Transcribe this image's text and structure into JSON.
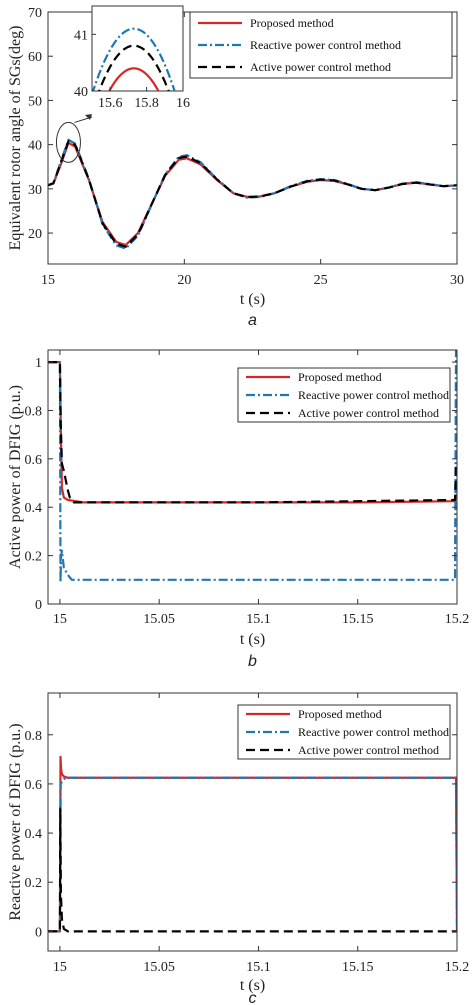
{
  "colors": {
    "proposed": "#d62728",
    "reactive": "#1f77b4",
    "active": "#000000"
  },
  "legend": [
    "Proposed method",
    "Reactive power control method",
    "Active power control method"
  ],
  "chart_data": [
    {
      "type": "line",
      "caption": "a",
      "xlabel": "t (s)",
      "ylabel": "Equivalent rotor angle of SGs(deg)",
      "xlim": [
        15,
        30
      ],
      "ylim": [
        13,
        70
      ],
      "xticks": [
        15,
        20,
        25,
        30
      ],
      "yticks": [
        20,
        30,
        40,
        50,
        60,
        70
      ],
      "legend_position": "top-right",
      "series": [
        {
          "name": "Proposed method",
          "x": [
            15,
            15.2,
            15.5,
            15.75,
            16,
            16.5,
            17,
            17.5,
            17.85,
            18.3,
            18.8,
            19.3,
            19.8,
            20.1,
            20.6,
            21.2,
            21.8,
            22.3,
            22.8,
            23.3,
            23.9,
            24.5,
            25,
            25.5,
            26,
            26.5,
            27,
            27.5,
            28,
            28.5,
            29,
            29.5,
            30
          ],
          "y": [
            30.8,
            31.2,
            36,
            40.4,
            39.5,
            32,
            22.5,
            18,
            17.3,
            20,
            26.5,
            33,
            36.6,
            36.9,
            35.5,
            32,
            29,
            28.2,
            28.3,
            29,
            30.5,
            31.6,
            32,
            31.8,
            31,
            30,
            29.7,
            30.3,
            31.1,
            31.4,
            31,
            30.6,
            30.8
          ]
        },
        {
          "name": "Reactive power control method",
          "x": [
            15,
            15.2,
            15.5,
            15.75,
            16,
            16.5,
            17,
            17.5,
            17.85,
            18.3,
            18.8,
            19.3,
            19.8,
            20.1,
            20.6,
            21.2,
            21.8,
            22.3,
            22.8,
            23.3,
            23.9,
            24.5,
            25,
            25.5,
            26,
            26.5,
            27,
            27.5,
            28,
            28.5,
            29,
            29.5,
            30
          ],
          "y": [
            30.8,
            31.3,
            36.7,
            41.1,
            40.2,
            32.2,
            22,
            17.2,
            16.5,
            19.4,
            26.4,
            33.3,
            37.3,
            37.6,
            36,
            32.2,
            29,
            28,
            28.2,
            29,
            30.6,
            31.8,
            32.2,
            32,
            31.1,
            30,
            29.7,
            30.3,
            31.2,
            31.5,
            31.1,
            30.6,
            30.8
          ]
        },
        {
          "name": "Active power control method",
          "x": [
            15,
            15.2,
            15.5,
            15.75,
            16,
            16.5,
            17,
            17.5,
            17.85,
            18.3,
            18.8,
            19.3,
            19.8,
            20.1,
            20.6,
            21.2,
            21.8,
            22.3,
            22.8,
            23.3,
            23.9,
            24.5,
            25,
            25.5,
            26,
            26.5,
            27,
            27.5,
            28,
            28.5,
            29,
            29.5,
            30
          ],
          "y": [
            30.8,
            31.3,
            36.4,
            40.8,
            39.9,
            32.1,
            22.2,
            17.6,
            16.9,
            19.7,
            26.5,
            33.2,
            37,
            37.3,
            35.8,
            32.1,
            29,
            28.1,
            28.3,
            29,
            30.5,
            31.7,
            32.1,
            31.9,
            31,
            30,
            29.7,
            30.3,
            31.1,
            31.4,
            31,
            30.6,
            30.8
          ]
        }
      ],
      "inset": {
        "xlim": [
          15.5,
          16
        ],
        "ylim": [
          40,
          41.5
        ],
        "xticks": [
          15.6,
          15.8,
          16
        ],
        "yticks": [
          40,
          41
        ],
        "peaks": {
          "Proposed method": 40.4,
          "Reactive power control method": 41.1,
          "Active power control method": 40.8
        },
        "peak_t": 15.73
      },
      "zoom_marker": {
        "t": 15.75,
        "y": 40.5
      }
    },
    {
      "type": "line",
      "caption": "b",
      "xlabel": "t (s)",
      "ylabel": "Active power of DFIG (p.u.)",
      "xlim": [
        14.994,
        15.2
      ],
      "ylim": [
        0,
        1.05
      ],
      "xticks": [
        15,
        15.05,
        15.1,
        15.15,
        15.2
      ],
      "ytick_labels": [
        "0",
        "0.2",
        "0.4",
        "0.6",
        "0.8",
        "1"
      ],
      "legend_position": "top-right",
      "series": [
        {
          "name": "Proposed method",
          "x": [
            14.994,
            15,
            15.0005,
            15.001,
            15.002,
            15.004,
            15.008,
            15.012,
            15.05,
            15.1,
            15.15,
            15.199,
            15.1995,
            15.2
          ],
          "y": [
            1,
            1,
            0.7,
            0.48,
            0.44,
            0.43,
            0.425,
            0.42,
            0.42,
            0.42,
            0.42,
            0.425,
            0.45,
            0.45
          ]
        },
        {
          "name": "Reactive power control method",
          "x": [
            14.994,
            15,
            15.0003,
            15.0006,
            15.001,
            15.002,
            15.004,
            15.006,
            15.05,
            15.1,
            15.15,
            15.199,
            15.1995,
            15.2
          ],
          "y": [
            1,
            1,
            0.09,
            0.2,
            0.22,
            0.15,
            0.12,
            0.1,
            0.1,
            0.1,
            0.1,
            0.1,
            1.05,
            1.05
          ]
        },
        {
          "name": "Active power control method",
          "x": [
            14.994,
            15,
            15.0004,
            15.001,
            15.002,
            15.004,
            15.005,
            15.007,
            15.05,
            15.1,
            15.15,
            15.199,
            15.1995,
            15.2
          ],
          "y": [
            1,
            1,
            0.75,
            0.58,
            0.55,
            0.47,
            0.44,
            0.42,
            0.42,
            0.42,
            0.425,
            0.43,
            0.57,
            0.57
          ]
        }
      ]
    },
    {
      "type": "line",
      "caption": "c",
      "xlabel": "t (s)",
      "ylabel": "Reactive power of DFIG (p.u.)",
      "xlim": [
        14.994,
        15.2
      ],
      "ylim": [
        -0.08,
        0.97
      ],
      "xticks": [
        15,
        15.05,
        15.1,
        15.15,
        15.2
      ],
      "ytick_labels": [
        "0",
        "0.2",
        "0.4",
        "0.6",
        "0.8"
      ],
      "legend_position": "top-right",
      "series": [
        {
          "name": "Proposed method",
          "x": [
            14.994,
            15,
            15.0003,
            15.0006,
            15.001,
            15.002,
            15.004,
            15.05,
            15.1,
            15.15,
            15.1995,
            15.2
          ],
          "y": [
            0,
            0,
            0.71,
            0.66,
            0.64,
            0.63,
            0.625,
            0.625,
            0.625,
            0.625,
            0.625,
            0
          ]
        },
        {
          "name": "Reactive power control method",
          "x": [
            14.994,
            15,
            15.0004,
            15.001,
            15.002,
            15.004,
            15.05,
            15.1,
            15.15,
            15.1995,
            15.2
          ],
          "y": [
            0,
            0,
            0.6,
            0.61,
            0.62,
            0.625,
            0.625,
            0.625,
            0.625,
            0.625,
            0
          ]
        },
        {
          "name": "Active power control method",
          "x": [
            14.994,
            15,
            15.0002,
            15.0005,
            15.001,
            15.002,
            15.004,
            15.05,
            15.1,
            15.15,
            15.2
          ],
          "y": [
            0,
            0,
            0.5,
            0.15,
            0.05,
            0.01,
            0,
            0,
            0,
            0,
            0
          ]
        }
      ]
    }
  ]
}
